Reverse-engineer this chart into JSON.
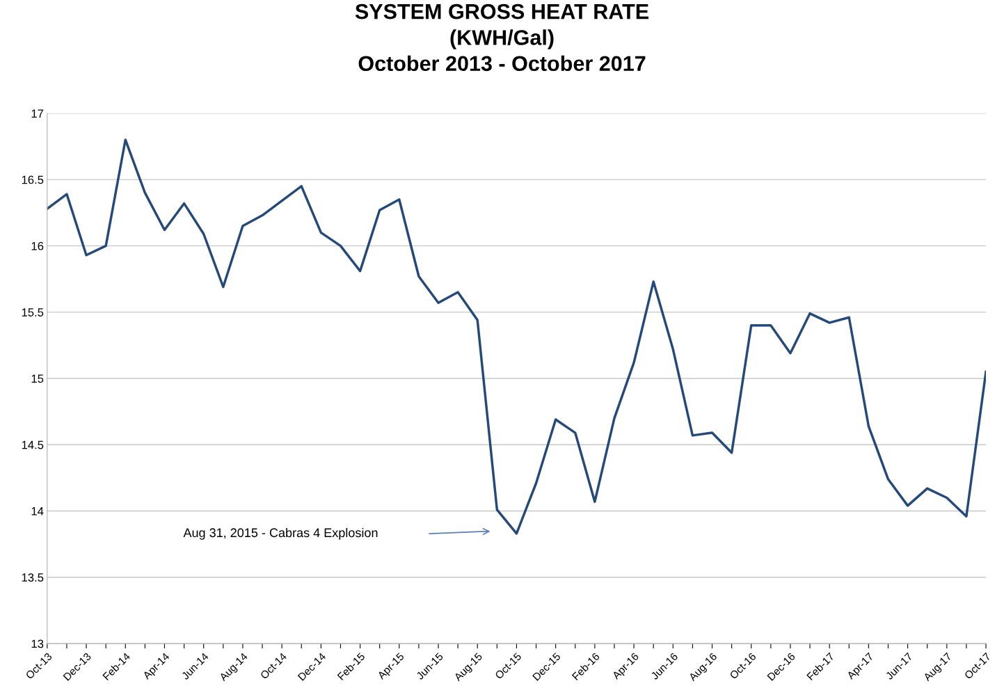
{
  "chart_data": {
    "type": "line",
    "title": "SYSTEM GROSS HEAT RATE\n(KWH/Gal)\nOctober 2013 - October 2017",
    "categories": [
      "Oct-13",
      null,
      "Dec-13",
      null,
      "Feb-14",
      null,
      "Apr-14",
      null,
      "Jun-14",
      null,
      "Aug-14",
      null,
      "Oct-14",
      null,
      "Dec-14",
      null,
      "Feb-15",
      null,
      "Apr-15",
      null,
      "Jun-15",
      null,
      "Aug-15",
      null,
      "Oct-15",
      null,
      "Dec-15",
      null,
      "Feb-16",
      null,
      "Apr-16",
      null,
      "Jun-16",
      null,
      "Aug-16",
      null,
      "Oct-16",
      null,
      "Dec-16",
      null,
      "Feb-17",
      null,
      "Apr-17",
      null,
      "Jun-17",
      null,
      "Aug-17",
      null,
      "Oct-17"
    ],
    "series": [
      {
        "color": "#254a7a",
        "values": [
          16.28,
          16.39,
          15.93,
          16.0,
          16.8,
          16.4,
          16.12,
          16.32,
          16.09,
          15.69,
          16.15,
          16.23,
          16.34,
          16.45,
          16.1,
          16.0,
          15.81,
          16.27,
          16.35,
          15.77,
          15.57,
          15.65,
          15.44,
          14.01,
          13.83,
          14.21,
          14.69,
          14.59,
          14.07,
          14.7,
          15.12,
          15.73,
          15.22,
          14.57,
          14.59,
          14.44,
          15.4,
          15.4,
          15.19,
          15.49,
          15.42,
          15.46,
          14.64,
          14.24,
          14.04,
          14.17,
          14.1,
          13.96,
          15.05
        ]
      }
    ],
    "ylim": [
      13,
      17
    ],
    "yticks": [
      13,
      13.5,
      14,
      14.5,
      15,
      15.5,
      16,
      16.5,
      17
    ],
    "grid": "y",
    "annotations": [
      "Aug 31, 2015 - Cabras 4 Explosion"
    ]
  }
}
